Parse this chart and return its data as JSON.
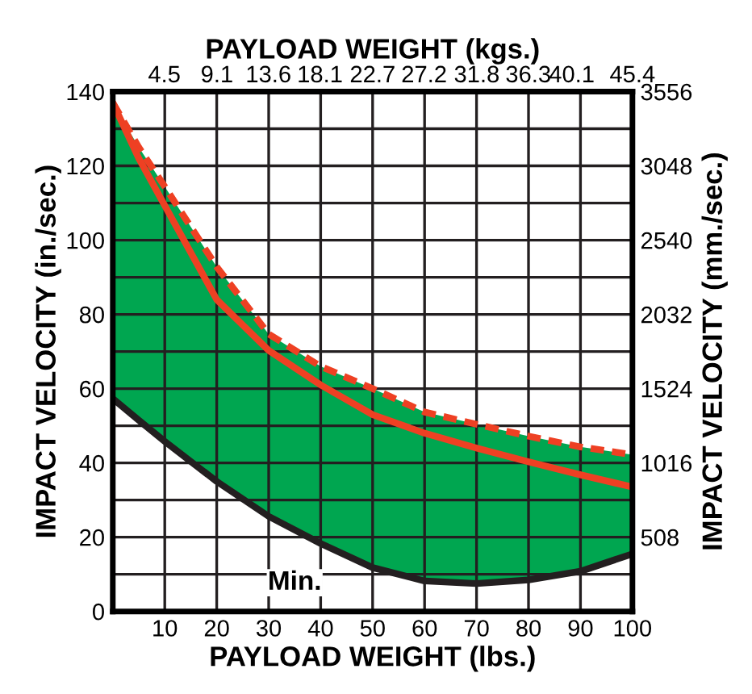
{
  "chart_data": {
    "type": "line",
    "xlabel": "PAYLOAD WEIGHT (lbs.)",
    "x2label": "PAYLOAD WEIGHT (kgs.)",
    "ylabel": "IMPACT VELOCITY (in./sec.)",
    "y2label": "IMPACT VELOCITY (mm./sec.)",
    "x": [
      0,
      5,
      10,
      20,
      30,
      40,
      50,
      60,
      70,
      80,
      90,
      100
    ],
    "series": [
      {
        "type": "area",
        "color": "#00a650",
        "values": [
          137,
          125,
          114.4,
          92.8,
          74.7,
          66,
          60,
          53.7,
          50.4,
          47.2,
          44.3,
          42.2
        ]
      },
      {
        "type": "line",
        "color": "#ee4023",
        "line_style": "dashed",
        "values": [
          137,
          125,
          114.4,
          92.8,
          74.7,
          66,
          60,
          53.7,
          50.4,
          47.2,
          44.3,
          42.2
        ]
      },
      {
        "type": "line",
        "color": "#ee4023",
        "line_style": "solid",
        "values": [
          137,
          122,
          109.3,
          84,
          70.3,
          61,
          53,
          48,
          44,
          40.3,
          36.8,
          33.5
        ]
      },
      {
        "color": "#231f20",
        "line_style": "solid",
        "values": [
          57.3,
          51.5,
          45.8,
          35,
          25.6,
          18.3,
          11.8,
          8.2,
          7.5,
          8.5,
          10.8,
          15.5
        ]
      }
    ],
    "xlim": [
      0,
      100
    ],
    "xticks": [
      {
        "value": 0,
        "label": null
      },
      10,
      20,
      30,
      40,
      50,
      60,
      70,
      80,
      90,
      100
    ],
    "ylim": [
      0,
      140
    ],
    "yticks": [
      0,
      {
        "value": 10,
        "label": null
      },
      20,
      {
        "value": 30,
        "label": null
      },
      40,
      {
        "value": 50,
        "label": null
      },
      60,
      {
        "value": 70,
        "label": null
      },
      80,
      {
        "value": 90,
        "label": null
      },
      100,
      {
        "value": 110,
        "label": null
      },
      120,
      {
        "value": 130,
        "label": null
      },
      140
    ],
    "y2lim": [
      0,
      3556
    ],
    "y2ticks": [
      508,
      1016,
      1524,
      2032,
      2540,
      3048,
      3556
    ],
    "x2lim": [
      0,
      45.4
    ],
    "x2ticks": [
      4.5,
      9.1,
      13.6,
      18.1,
      22.7,
      27.2,
      31.8,
      36.3,
      40.1,
      45.4
    ],
    "grid": true,
    "annotations": [
      "Min."
    ]
  }
}
